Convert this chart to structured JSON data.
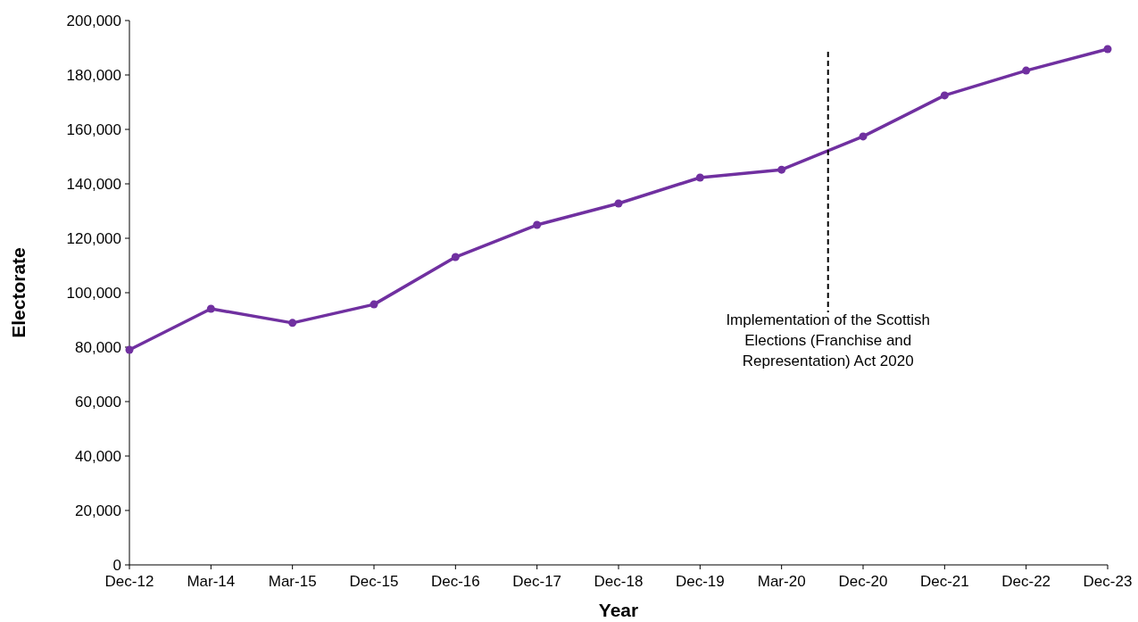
{
  "chart_data": {
    "type": "line",
    "xlabel": "Year",
    "ylabel": "Electorate",
    "categories": [
      "Dec-12",
      "Mar-14",
      "Mar-15",
      "Dec-15",
      "Dec-16",
      "Dec-17",
      "Dec-18",
      "Dec-19",
      "Mar-20",
      "Dec-20",
      "Dec-21",
      "Dec-22",
      "Dec-23"
    ],
    "series": [
      {
        "color": "#7030a0",
        "values": [
          79000,
          94100,
          88900,
          95700,
          113100,
          124900,
          132800,
          142300,
          145200,
          157400,
          172500,
          181600,
          189500
        ]
      }
    ],
    "ylim": [
      0,
      200000
    ],
    "yticks": [
      {
        "value": 0,
        "label": "0"
      },
      {
        "value": 20000,
        "label": "20,000"
      },
      {
        "value": 40000,
        "label": "40,000"
      },
      {
        "value": 60000,
        "label": "60,000"
      },
      {
        "value": 80000,
        "label": "80,000"
      },
      {
        "value": 100000,
        "label": "100,000"
      },
      {
        "value": 120000,
        "label": "120,000"
      },
      {
        "value": 140000,
        "label": "140,000"
      },
      {
        "value": 160000,
        "label": "160,000"
      },
      {
        "value": 180000,
        "label": "180,000"
      },
      {
        "value": 200000,
        "label": "200,000"
      }
    ],
    "annotations": [
      "Implementation of the Scottish Elections (Franchise and Representation) Act 2020"
    ],
    "marker": "circle",
    "line_style": "solid"
  }
}
